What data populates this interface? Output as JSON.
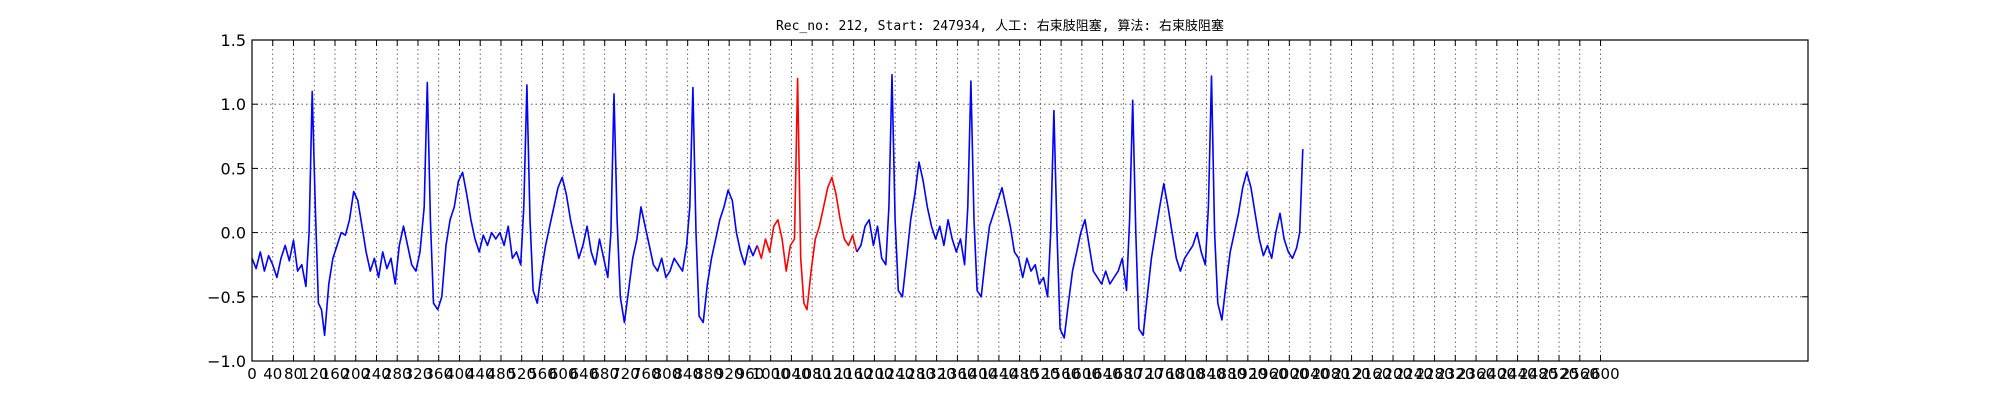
{
  "chart_data": {
    "type": "line",
    "title": "Rec_no: 212, Start: 247934, 人工: 右束肢阻塞, 算法: 右束肢阻塞",
    "xlabel": "",
    "ylabel": "",
    "xlim": [
      0,
      1500
    ],
    "ylim": [
      -1.0,
      1.5
    ],
    "yticks": [
      -1.0,
      -0.5,
      0.0,
      0.5,
      1.0,
      1.5
    ],
    "ytick_labels": [
      "−1.0",
      "−0.5",
      "0.0",
      "0.5",
      "1.0",
      "1.5"
    ],
    "xticks": [
      0,
      20,
      40,
      60,
      80,
      100,
      120,
      140,
      160,
      180,
      200,
      220,
      240,
      260,
      280,
      300,
      320,
      340,
      360,
      380,
      400,
      420,
      440,
      460,
      480,
      500,
      520,
      540,
      560,
      580,
      600,
      620,
      640,
      660,
      680,
      700,
      720,
      740,
      760,
      780,
      800,
      820,
      840,
      860,
      880,
      900,
      920,
      940,
      960,
      980,
      1000,
      1020,
      1040,
      1060,
      1080,
      1100,
      1120,
      1140,
      1160,
      1180,
      1200,
      1220,
      1240,
      1260,
      1280,
      1300
    ],
    "xtick_labels": [
      "0",
      "40",
      "80",
      "120",
      "160",
      "200",
      "240",
      "280",
      "320",
      "360",
      "400",
      "440",
      "480",
      "520",
      "560",
      "600",
      "640",
      "680",
      "720",
      "760",
      "800",
      "840",
      "880",
      "920",
      "960",
      "1000",
      "1040",
      "1080",
      "1120",
      "1160",
      "1200",
      "1240",
      "1280",
      "1320",
      "1360",
      "1400",
      "1440",
      "1480",
      "1520",
      "1560",
      "1600",
      "1640",
      "1680",
      "1720",
      "1760",
      "1800",
      "1840",
      "1880",
      "1920",
      "1960",
      "2000",
      "2040",
      "2080",
      "2120",
      "2160",
      "2200",
      "2240",
      "2280",
      "2320",
      "2360",
      "2400",
      "2440",
      "2480",
      "2520",
      "2560",
      "2600"
    ],
    "grid": true,
    "colors": {
      "normal": "#0000ff",
      "highlight": "#ff0000"
    },
    "series": [
      {
        "color": "#0000ff",
        "segments": [
          [
            0,
            -0.2
          ],
          [
            4,
            -0.28
          ],
          [
            8,
            -0.15
          ],
          [
            12,
            -0.3
          ],
          [
            16,
            -0.18
          ],
          [
            20,
            -0.25
          ],
          [
            24,
            -0.35
          ],
          [
            28,
            -0.2
          ],
          [
            32,
            -0.1
          ],
          [
            36,
            -0.22
          ],
          [
            40,
            -0.06
          ],
          [
            44,
            -0.3
          ],
          [
            48,
            -0.25
          ],
          [
            52,
            -0.42
          ],
          [
            55,
            0.0
          ],
          [
            58,
            1.1
          ],
          [
            61,
            0.2
          ],
          [
            64,
            -0.55
          ],
          [
            67,
            -0.6
          ],
          [
            70,
            -0.8
          ],
          [
            74,
            -0.4
          ],
          [
            78,
            -0.2
          ],
          [
            82,
            -0.1
          ],
          [
            86,
            0.0
          ],
          [
            90,
            -0.02
          ],
          [
            94,
            0.1
          ],
          [
            98,
            0.32
          ],
          [
            102,
            0.25
          ],
          [
            106,
            0.05
          ],
          [
            110,
            -0.15
          ],
          [
            114,
            -0.3
          ],
          [
            118,
            -0.2
          ],
          [
            122,
            -0.35
          ],
          [
            126,
            -0.15
          ],
          [
            130,
            -0.28
          ],
          [
            134,
            -0.2
          ],
          [
            138,
            -0.4
          ],
          [
            142,
            -0.1
          ],
          [
            146,
            0.05
          ],
          [
            150,
            -0.1
          ],
          [
            154,
            -0.25
          ],
          [
            158,
            -0.3
          ],
          [
            162,
            -0.15
          ],
          [
            166,
            0.2
          ],
          [
            169,
            1.17
          ],
          [
            172,
            0.1
          ],
          [
            175,
            -0.55
          ],
          [
            179,
            -0.6
          ],
          [
            183,
            -0.5
          ],
          [
            187,
            -0.1
          ],
          [
            191,
            0.1
          ],
          [
            195,
            0.2
          ],
          [
            199,
            0.4
          ],
          [
            203,
            0.47
          ],
          [
            207,
            0.3
          ],
          [
            211,
            0.1
          ],
          [
            215,
            -0.05
          ],
          [
            219,
            -0.15
          ],
          [
            223,
            -0.02
          ],
          [
            227,
            -0.1
          ],
          [
            231,
            0.0
          ],
          [
            235,
            -0.05
          ],
          [
            239,
            0.0
          ],
          [
            243,
            -0.1
          ],
          [
            247,
            0.05
          ],
          [
            251,
            -0.2
          ],
          [
            255,
            -0.15
          ],
          [
            259,
            -0.25
          ],
          [
            262,
            0.2
          ],
          [
            265,
            1.15
          ],
          [
            268,
            0.1
          ],
          [
            271,
            -0.45
          ],
          [
            275,
            -0.55
          ],
          [
            279,
            -0.3
          ],
          [
            283,
            -0.1
          ],
          [
            287,
            0.05
          ],
          [
            291,
            0.2
          ],
          [
            295,
            0.35
          ],
          [
            299,
            0.43
          ],
          [
            303,
            0.3
          ],
          [
            307,
            0.1
          ],
          [
            311,
            -0.05
          ],
          [
            315,
            -0.2
          ],
          [
            319,
            -0.1
          ],
          [
            323,
            0.05
          ],
          [
            327,
            -0.15
          ],
          [
            331,
            -0.25
          ],
          [
            335,
            -0.05
          ],
          [
            339,
            -0.2
          ],
          [
            343,
            -0.35
          ],
          [
            346,
            0.0
          ],
          [
            349,
            1.08
          ],
          [
            352,
            0.1
          ],
          [
            355,
            -0.5
          ],
          [
            359,
            -0.7
          ],
          [
            363,
            -0.45
          ],
          [
            367,
            -0.2
          ],
          [
            371,
            -0.05
          ],
          [
            375,
            0.2
          ],
          [
            379,
            0.05
          ],
          [
            383,
            -0.1
          ],
          [
            387,
            -0.25
          ],
          [
            391,
            -0.3
          ],
          [
            395,
            -0.2
          ],
          [
            399,
            -0.35
          ],
          [
            403,
            -0.3
          ],
          [
            407,
            -0.2
          ],
          [
            411,
            -0.25
          ],
          [
            415,
            -0.3
          ],
          [
            419,
            -0.1
          ],
          [
            422,
            0.2
          ],
          [
            425,
            1.13
          ],
          [
            428,
            0.0
          ],
          [
            431,
            -0.65
          ],
          [
            435,
            -0.7
          ],
          [
            439,
            -0.4
          ],
          [
            443,
            -0.2
          ],
          [
            447,
            -0.05
          ],
          [
            451,
            0.1
          ],
          [
            455,
            0.2
          ],
          [
            459,
            0.33
          ],
          [
            463,
            0.25
          ],
          [
            467,
            0.0
          ],
          [
            471,
            -0.15
          ],
          [
            475,
            -0.25
          ],
          [
            479,
            -0.1
          ],
          [
            483,
            -0.18
          ],
          [
            487,
            -0.1
          ]
        ]
      },
      {
        "color": "#ff0000",
        "segments": [
          [
            487,
            -0.1
          ],
          [
            491,
            -0.2
          ],
          [
            495,
            -0.05
          ],
          [
            499,
            -0.15
          ],
          [
            503,
            0.05
          ],
          [
            507,
            0.1
          ],
          [
            511,
            -0.05
          ],
          [
            515,
            -0.3
          ],
          [
            519,
            -0.1
          ],
          [
            523,
            -0.05
          ],
          [
            526,
            1.2
          ],
          [
            529,
            -0.2
          ],
          [
            532,
            -0.55
          ],
          [
            535,
            -0.6
          ],
          [
            539,
            -0.3
          ],
          [
            543,
            -0.05
          ],
          [
            547,
            0.05
          ],
          [
            551,
            0.2
          ],
          [
            555,
            0.35
          ],
          [
            559,
            0.43
          ],
          [
            563,
            0.3
          ],
          [
            567,
            0.1
          ],
          [
            571,
            -0.05
          ],
          [
            575,
            -0.1
          ],
          [
            579,
            -0.02
          ],
          [
            583,
            -0.15
          ]
        ]
      },
      {
        "color": "#0000ff",
        "segments": [
          [
            583,
            -0.15
          ],
          [
            587,
            -0.1
          ],
          [
            591,
            0.05
          ],
          [
            595,
            0.1
          ],
          [
            599,
            -0.1
          ],
          [
            603,
            0.05
          ],
          [
            607,
            -0.2
          ],
          [
            611,
            -0.25
          ],
          [
            614,
            0.2
          ],
          [
            617,
            1.23
          ],
          [
            620,
            0.1
          ],
          [
            623,
            -0.45
          ],
          [
            627,
            -0.5
          ],
          [
            631,
            -0.2
          ],
          [
            635,
            0.1
          ],
          [
            639,
            0.3
          ],
          [
            643,
            0.55
          ],
          [
            647,
            0.4
          ],
          [
            651,
            0.2
          ],
          [
            655,
            0.05
          ],
          [
            659,
            -0.05
          ],
          [
            663,
            0.05
          ],
          [
            667,
            -0.1
          ],
          [
            671,
            0.1
          ],
          [
            675,
            -0.05
          ],
          [
            679,
            -0.15
          ],
          [
            683,
            -0.05
          ],
          [
            687,
            -0.25
          ],
          [
            690,
            0.2
          ],
          [
            693,
            1.18
          ],
          [
            696,
            0.1
          ],
          [
            699,
            -0.45
          ],
          [
            703,
            -0.5
          ],
          [
            707,
            -0.2
          ],
          [
            711,
            0.05
          ],
          [
            715,
            0.15
          ],
          [
            719,
            0.25
          ],
          [
            723,
            0.35
          ],
          [
            727,
            0.2
          ],
          [
            731,
            0.05
          ],
          [
            735,
            -0.15
          ],
          [
            739,
            -0.2
          ],
          [
            743,
            -0.35
          ],
          [
            747,
            -0.2
          ],
          [
            751,
            -0.3
          ],
          [
            755,
            -0.25
          ],
          [
            759,
            -0.4
          ],
          [
            763,
            -0.35
          ],
          [
            767,
            -0.5
          ],
          [
            770,
            0.0
          ],
          [
            773,
            0.95
          ],
          [
            776,
            0.0
          ],
          [
            779,
            -0.75
          ],
          [
            783,
            -0.82
          ],
          [
            787,
            -0.55
          ],
          [
            791,
            -0.3
          ],
          [
            795,
            -0.15
          ],
          [
            799,
            0.0
          ],
          [
            803,
            0.1
          ],
          [
            807,
            -0.1
          ],
          [
            811,
            -0.3
          ],
          [
            815,
            -0.35
          ],
          [
            819,
            -0.4
          ],
          [
            823,
            -0.3
          ],
          [
            827,
            -0.4
          ],
          [
            831,
            -0.35
          ],
          [
            835,
            -0.3
          ],
          [
            839,
            -0.2
          ],
          [
            843,
            -0.45
          ],
          [
            846,
            0.1
          ],
          [
            849,
            1.03
          ],
          [
            852,
            0.0
          ],
          [
            855,
            -0.75
          ],
          [
            859,
            -0.8
          ],
          [
            863,
            -0.5
          ],
          [
            867,
            -0.2
          ],
          [
            871,
            0.0
          ],
          [
            875,
            0.2
          ],
          [
            879,
            0.38
          ],
          [
            883,
            0.2
          ],
          [
            887,
            0.0
          ],
          [
            891,
            -0.2
          ],
          [
            895,
            -0.3
          ],
          [
            899,
            -0.2
          ],
          [
            903,
            -0.15
          ],
          [
            907,
            -0.1
          ],
          [
            911,
            0.0
          ],
          [
            915,
            -0.15
          ],
          [
            919,
            -0.25
          ],
          [
            922,
            0.2
          ],
          [
            925,
            1.22
          ],
          [
            928,
            0.0
          ],
          [
            931,
            -0.55
          ],
          [
            935,
            -0.68
          ],
          [
            939,
            -0.4
          ],
          [
            943,
            -0.15
          ],
          [
            947,
            0.0
          ],
          [
            951,
            0.15
          ],
          [
            955,
            0.35
          ],
          [
            959,
            0.47
          ],
          [
            963,
            0.35
          ],
          [
            967,
            0.15
          ],
          [
            971,
            -0.05
          ],
          [
            975,
            -0.18
          ],
          [
            979,
            -0.1
          ],
          [
            983,
            -0.2
          ],
          [
            987,
            0.0
          ],
          [
            991,
            0.15
          ],
          [
            995,
            -0.05
          ],
          [
            999,
            -0.15
          ],
          [
            1003,
            -0.2
          ],
          [
            1007,
            -0.12
          ],
          [
            1010,
            0.0
          ],
          [
            1013,
            0.65
          ]
        ]
      }
    ]
  }
}
